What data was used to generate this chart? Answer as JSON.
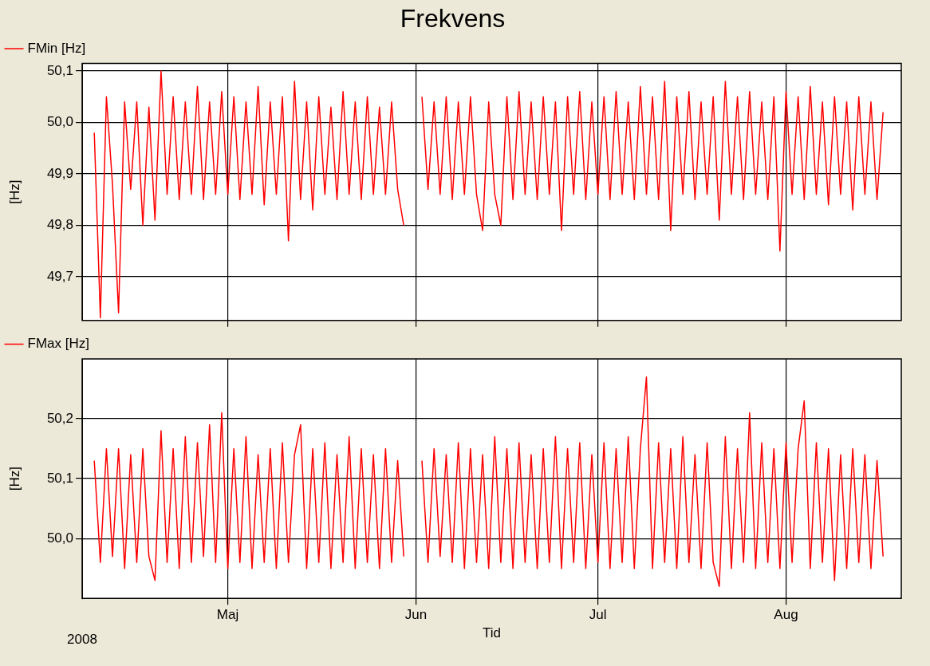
{
  "chart_data": [
    {
      "type": "line",
      "title": "Frekvens",
      "ylabel": "[Hz]",
      "x": [
        "2008-04-09",
        "2008-04-10",
        "2008-04-11",
        "2008-04-12",
        "2008-04-13",
        "2008-04-14",
        "2008-04-15",
        "2008-04-16",
        "2008-04-17",
        "2008-04-18",
        "2008-04-19",
        "2008-04-20",
        "2008-04-21",
        "2008-04-22",
        "2008-04-23",
        "2008-04-24",
        "2008-04-25",
        "2008-04-26",
        "2008-04-27",
        "2008-04-28",
        "2008-04-29",
        "2008-04-30",
        "2008-05-01",
        "2008-05-02",
        "2008-05-03",
        "2008-05-04",
        "2008-05-05",
        "2008-05-06",
        "2008-05-07",
        "2008-05-08",
        "2008-05-09",
        "2008-05-10",
        "2008-05-11",
        "2008-05-12",
        "2008-05-13",
        "2008-05-14",
        "2008-05-15",
        "2008-05-16",
        "2008-05-17",
        "2008-05-18",
        "2008-05-19",
        "2008-05-20",
        "2008-05-21",
        "2008-05-22",
        "2008-05-23",
        "2008-05-24",
        "2008-05-25",
        "2008-05-26",
        "2008-05-27",
        "2008-05-28",
        "2008-05-29",
        "2008-05-30",
        "2008-05-31",
        "2008-06-02",
        "2008-06-03",
        "2008-06-04",
        "2008-06-05",
        "2008-06-06",
        "2008-06-07",
        "2008-06-08",
        "2008-06-09",
        "2008-06-10",
        "2008-06-11",
        "2008-06-12",
        "2008-06-13",
        "2008-06-14",
        "2008-06-15",
        "2008-06-16",
        "2008-06-17",
        "2008-06-18",
        "2008-06-19",
        "2008-06-20",
        "2008-06-21",
        "2008-06-22",
        "2008-06-23",
        "2008-06-24",
        "2008-06-25",
        "2008-06-26",
        "2008-06-27",
        "2008-06-28",
        "2008-06-29",
        "2008-06-30",
        "2008-07-01",
        "2008-07-02",
        "2008-07-03",
        "2008-07-04",
        "2008-07-05",
        "2008-07-06",
        "2008-07-07",
        "2008-07-08",
        "2008-07-09",
        "2008-07-10",
        "2008-07-11",
        "2008-07-12",
        "2008-07-13",
        "2008-07-14",
        "2008-07-15",
        "2008-07-16",
        "2008-07-17",
        "2008-07-18",
        "2008-07-19",
        "2008-07-20",
        "2008-07-21",
        "2008-07-22",
        "2008-07-23",
        "2008-07-24",
        "2008-07-25",
        "2008-07-26",
        "2008-07-27",
        "2008-07-28",
        "2008-07-29",
        "2008-07-30",
        "2008-07-31",
        "2008-08-01",
        "2008-08-02",
        "2008-08-03",
        "2008-08-04",
        "2008-08-05",
        "2008-08-06",
        "2008-08-07",
        "2008-08-08",
        "2008-08-09",
        "2008-08-10",
        "2008-08-11",
        "2008-08-12",
        "2008-08-13",
        "2008-08-14",
        "2008-08-15",
        "2008-08-16",
        "2008-08-17"
      ],
      "series": [
        {
          "name": "FMin [Hz]",
          "color": "#ff0000",
          "values": [
            49.98,
            49.62,
            50.05,
            49.88,
            49.63,
            50.04,
            49.87,
            50.04,
            49.8,
            50.03,
            49.81,
            50.1,
            49.86,
            50.05,
            49.85,
            50.04,
            49.86,
            50.07,
            49.85,
            50.04,
            49.86,
            50.06,
            49.86,
            50.05,
            49.85,
            50.04,
            49.86,
            50.07,
            49.84,
            50.04,
            49.86,
            50.05,
            49.77,
            50.08,
            49.85,
            50.04,
            49.83,
            50.05,
            49.86,
            50.03,
            49.85,
            50.06,
            49.86,
            50.04,
            49.85,
            50.05,
            49.86,
            50.03,
            49.86,
            50.04,
            49.87,
            49.8,
            null,
            50.05,
            49.87,
            50.04,
            49.86,
            50.05,
            49.85,
            50.04,
            49.86,
            50.05,
            49.86,
            49.79,
            50.04,
            49.86,
            49.8,
            50.05,
            49.85,
            50.06,
            49.86,
            50.04,
            49.85,
            50.05,
            49.86,
            50.04,
            49.79,
            50.05,
            49.86,
            50.06,
            49.85,
            50.04,
            49.86,
            50.05,
            49.85,
            50.06,
            49.86,
            50.04,
            49.85,
            50.07,
            49.86,
            50.05,
            49.85,
            50.08,
            49.79,
            50.05,
            49.86,
            50.06,
            49.85,
            50.04,
            49.86,
            50.05,
            49.81,
            50.08,
            49.86,
            50.05,
            49.85,
            50.06,
            49.86,
            50.04,
            49.85,
            50.05,
            49.75,
            50.06,
            49.86,
            50.05,
            49.85,
            50.07,
            49.86,
            50.04,
            49.84,
            50.05,
            49.86,
            50.04,
            49.83,
            50.05,
            49.86,
            50.04,
            49.85,
            50.02
          ]
        }
      ],
      "xlim": [
        "2008-04-07",
        "2008-08-20"
      ],
      "xticks": [
        "2008-05-01",
        "2008-06-01",
        "2008-07-01",
        "2008-08-01"
      ],
      "ylim": [
        49.615,
        50.115
      ],
      "yticks": [
        {
          "value": 49.7,
          "label": "49,7"
        },
        {
          "value": 49.8,
          "label": "49,8"
        },
        {
          "value": 49.9,
          "label": "49,9"
        },
        {
          "value": 50.0,
          "label": "50,0"
        },
        {
          "value": 50.1,
          "label": "50,1"
        }
      ],
      "tick_labels": "y",
      "grid": true,
      "legend": "top left",
      "marker": "none",
      "line_style": "solid"
    },
    {
      "type": "line",
      "xlabel": "Tid",
      "ylabel": "[Hz]",
      "annotations": [
        "2008"
      ],
      "x": [
        "2008-04-09",
        "2008-04-10",
        "2008-04-11",
        "2008-04-12",
        "2008-04-13",
        "2008-04-14",
        "2008-04-15",
        "2008-04-16",
        "2008-04-17",
        "2008-04-18",
        "2008-04-19",
        "2008-04-20",
        "2008-04-21",
        "2008-04-22",
        "2008-04-23",
        "2008-04-24",
        "2008-04-25",
        "2008-04-26",
        "2008-04-27",
        "2008-04-28",
        "2008-04-29",
        "2008-04-30",
        "2008-05-01",
        "2008-05-02",
        "2008-05-03",
        "2008-05-04",
        "2008-05-05",
        "2008-05-06",
        "2008-05-07",
        "2008-05-08",
        "2008-05-09",
        "2008-05-10",
        "2008-05-11",
        "2008-05-12",
        "2008-05-13",
        "2008-05-14",
        "2008-05-15",
        "2008-05-16",
        "2008-05-17",
        "2008-05-18",
        "2008-05-19",
        "2008-05-20",
        "2008-05-21",
        "2008-05-22",
        "2008-05-23",
        "2008-05-24",
        "2008-05-25",
        "2008-05-26",
        "2008-05-27",
        "2008-05-28",
        "2008-05-29",
        "2008-05-30",
        "2008-05-31",
        "2008-06-02",
        "2008-06-03",
        "2008-06-04",
        "2008-06-05",
        "2008-06-06",
        "2008-06-07",
        "2008-06-08",
        "2008-06-09",
        "2008-06-10",
        "2008-06-11",
        "2008-06-12",
        "2008-06-13",
        "2008-06-14",
        "2008-06-15",
        "2008-06-16",
        "2008-06-17",
        "2008-06-18",
        "2008-06-19",
        "2008-06-20",
        "2008-06-21",
        "2008-06-22",
        "2008-06-23",
        "2008-06-24",
        "2008-06-25",
        "2008-06-26",
        "2008-06-27",
        "2008-06-28",
        "2008-06-29",
        "2008-06-30",
        "2008-07-01",
        "2008-07-02",
        "2008-07-03",
        "2008-07-04",
        "2008-07-05",
        "2008-07-06",
        "2008-07-07",
        "2008-07-08",
        "2008-07-09",
        "2008-07-10",
        "2008-07-11",
        "2008-07-12",
        "2008-07-13",
        "2008-07-14",
        "2008-07-15",
        "2008-07-16",
        "2008-07-17",
        "2008-07-18",
        "2008-07-19",
        "2008-07-20",
        "2008-07-21",
        "2008-07-22",
        "2008-07-23",
        "2008-07-24",
        "2008-07-25",
        "2008-07-26",
        "2008-07-27",
        "2008-07-28",
        "2008-07-29",
        "2008-07-30",
        "2008-07-31",
        "2008-08-01",
        "2008-08-02",
        "2008-08-03",
        "2008-08-04",
        "2008-08-05",
        "2008-08-06",
        "2008-08-07",
        "2008-08-08",
        "2008-08-09",
        "2008-08-10",
        "2008-08-11",
        "2008-08-12",
        "2008-08-13",
        "2008-08-14",
        "2008-08-15",
        "2008-08-16",
        "2008-08-17"
      ],
      "series": [
        {
          "name": "FMax [Hz]",
          "color": "#ff0000",
          "values": [
            50.13,
            49.96,
            50.15,
            49.97,
            50.15,
            49.95,
            50.14,
            49.96,
            50.15,
            49.97,
            49.93,
            50.18,
            49.96,
            50.15,
            49.95,
            50.17,
            49.96,
            50.16,
            49.97,
            50.19,
            49.96,
            50.21,
            49.95,
            50.15,
            49.96,
            50.17,
            49.95,
            50.14,
            49.96,
            50.15,
            49.95,
            50.16,
            49.96,
            50.14,
            50.19,
            49.95,
            50.15,
            49.96,
            50.16,
            49.95,
            50.14,
            49.96,
            50.17,
            49.95,
            50.15,
            49.96,
            50.14,
            49.95,
            50.15,
            49.96,
            50.13,
            49.97,
            null,
            50.13,
            49.96,
            50.15,
            49.97,
            50.14,
            49.96,
            50.16,
            49.95,
            50.15,
            49.96,
            50.14,
            49.95,
            50.17,
            49.96,
            50.15,
            49.95,
            50.16,
            49.96,
            50.14,
            49.95,
            50.15,
            49.96,
            50.17,
            49.95,
            50.15,
            49.96,
            50.16,
            49.95,
            50.14,
            49.96,
            50.16,
            49.95,
            50.15,
            49.96,
            50.17,
            49.95,
            50.15,
            50.27,
            49.95,
            50.16,
            49.96,
            50.15,
            49.95,
            50.17,
            49.96,
            50.14,
            49.95,
            50.16,
            49.96,
            49.92,
            50.17,
            49.95,
            50.15,
            49.96,
            50.21,
            49.95,
            50.16,
            49.96,
            50.15,
            49.95,
            50.16,
            49.96,
            50.15,
            50.23,
            49.95,
            50.16,
            49.96,
            50.15,
            49.93,
            50.14,
            49.95,
            50.15,
            49.96,
            50.14,
            49.95,
            50.13,
            49.97
          ]
        }
      ],
      "xlim": [
        "2008-04-07",
        "2008-08-20"
      ],
      "xticks": [
        {
          "value": "2008-05-01",
          "label": "Maj"
        },
        {
          "value": "2008-06-01",
          "label": "Jun"
        },
        {
          "value": "2008-07-01",
          "label": "Jul"
        },
        {
          "value": "2008-08-01",
          "label": "Aug"
        }
      ],
      "ylim": [
        49.9,
        50.3
      ],
      "yticks": [
        {
          "value": 50.0,
          "label": "50,0"
        },
        {
          "value": 50.1,
          "label": "50,1"
        },
        {
          "value": 50.2,
          "label": "50,2"
        }
      ],
      "grid": true,
      "legend": "top left",
      "marker": "none",
      "line_style": "solid"
    }
  ]
}
